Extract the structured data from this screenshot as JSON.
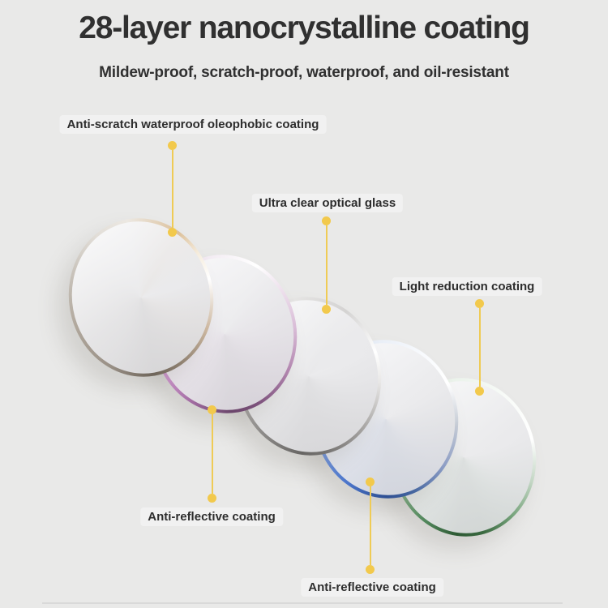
{
  "header": {
    "title": "28-layer nanocrystalline coating",
    "subtitle": "Mildew-proof, scratch-proof, waterproof, and oil-resistant",
    "text_color": "#303030"
  },
  "theme": {
    "background": "#e9e9e8",
    "callout_dot_color": "#F2C94C",
    "callout_line_color": "#EFCB55",
    "label_color": "#2d2d2d",
    "divider_color": "#d9d9d9"
  },
  "callouts": [
    {
      "text": "Anti-scratch waterproof oleophobic coating"
    },
    {
      "text": "Ultra clear optical glass"
    },
    {
      "text": "Light reduction coating"
    },
    {
      "text": "Anti-reflective coating"
    },
    {
      "text": "Anti-reflective coating"
    }
  ],
  "lenses": [
    {
      "name": "anti-scratch-waterproof-oleophobic-coating-layer",
      "rim_style": "champagne-silver",
      "rim_colors": [
        "#ece8e2 0deg",
        "#dcc09a 40deg",
        "#f5ecdd 62deg",
        "#ffffff 85deg",
        "#cdb8a0 125deg",
        "#8d7f6f 160deg",
        "#6e655a 180deg",
        "#9a9187 215deg",
        "#b0a79c 255deg",
        "#c9c3bb 300deg",
        "#e2ded8 335deg",
        "#ece8e2 360deg"
      ]
    },
    {
      "name": "anti-reflective-coating-layer-front",
      "rim_style": "pink-violet",
      "rim_colors": [
        "#f3ecf3 0deg",
        "#ffffff 35deg",
        "#efe3ee 60deg",
        "#d9bcd7 95deg",
        "#b286af 130deg",
        "#7c517b 165deg",
        "#6b466b 185deg",
        "#a06ba0 215deg",
        "#c78fc7 240deg",
        "#d3a5d2 275deg",
        "#e4c9e3 315deg",
        "#f3ecf3 360deg"
      ]
    },
    {
      "name": "ultra-clear-optical-glass-layer",
      "rim_style": "silver-gray",
      "rim_colors": [
        "#e5e4e3 0deg",
        "#d4d3d2 40deg",
        "#ffffff 80deg",
        "#e8e7e6 105deg",
        "#a5a3a1 145deg",
        "#787674 175deg",
        "#676563 195deg",
        "#8e8c8a 230deg",
        "#b5b3b1 270deg",
        "#d2d1d0 315deg",
        "#e5e4e3 360deg"
      ]
    },
    {
      "name": "anti-reflective-coating-layer-back",
      "rim_style": "blue",
      "rim_colors": [
        "#e7edf6 0deg",
        "#f8fafd 40deg",
        "#ffffff 70deg",
        "#c5cbd5 105deg",
        "#8b9cc4 140deg",
        "#44659f 170deg",
        "#2e4f93 190deg",
        "#4a74c9 220deg",
        "#7597dc 255deg",
        "#a2bce9 295deg",
        "#cbd9f2 335deg",
        "#e7edf6 360deg"
      ]
    },
    {
      "name": "light-reduction-coating-layer",
      "rim_style": "green",
      "rim_colors": [
        "#eaf2ea 0deg",
        "#f8fbf8 45deg",
        "#ffffff 85deg",
        "#c3d6c4 120deg",
        "#77a47c 150deg",
        "#3b6a41 175deg",
        "#2e5a34 195deg",
        "#50855a 220deg",
        "#84b189 255deg",
        "#b4d0b6 295deg",
        "#d8e7d9 335deg",
        "#eaf2ea 360deg"
      ]
    }
  ]
}
